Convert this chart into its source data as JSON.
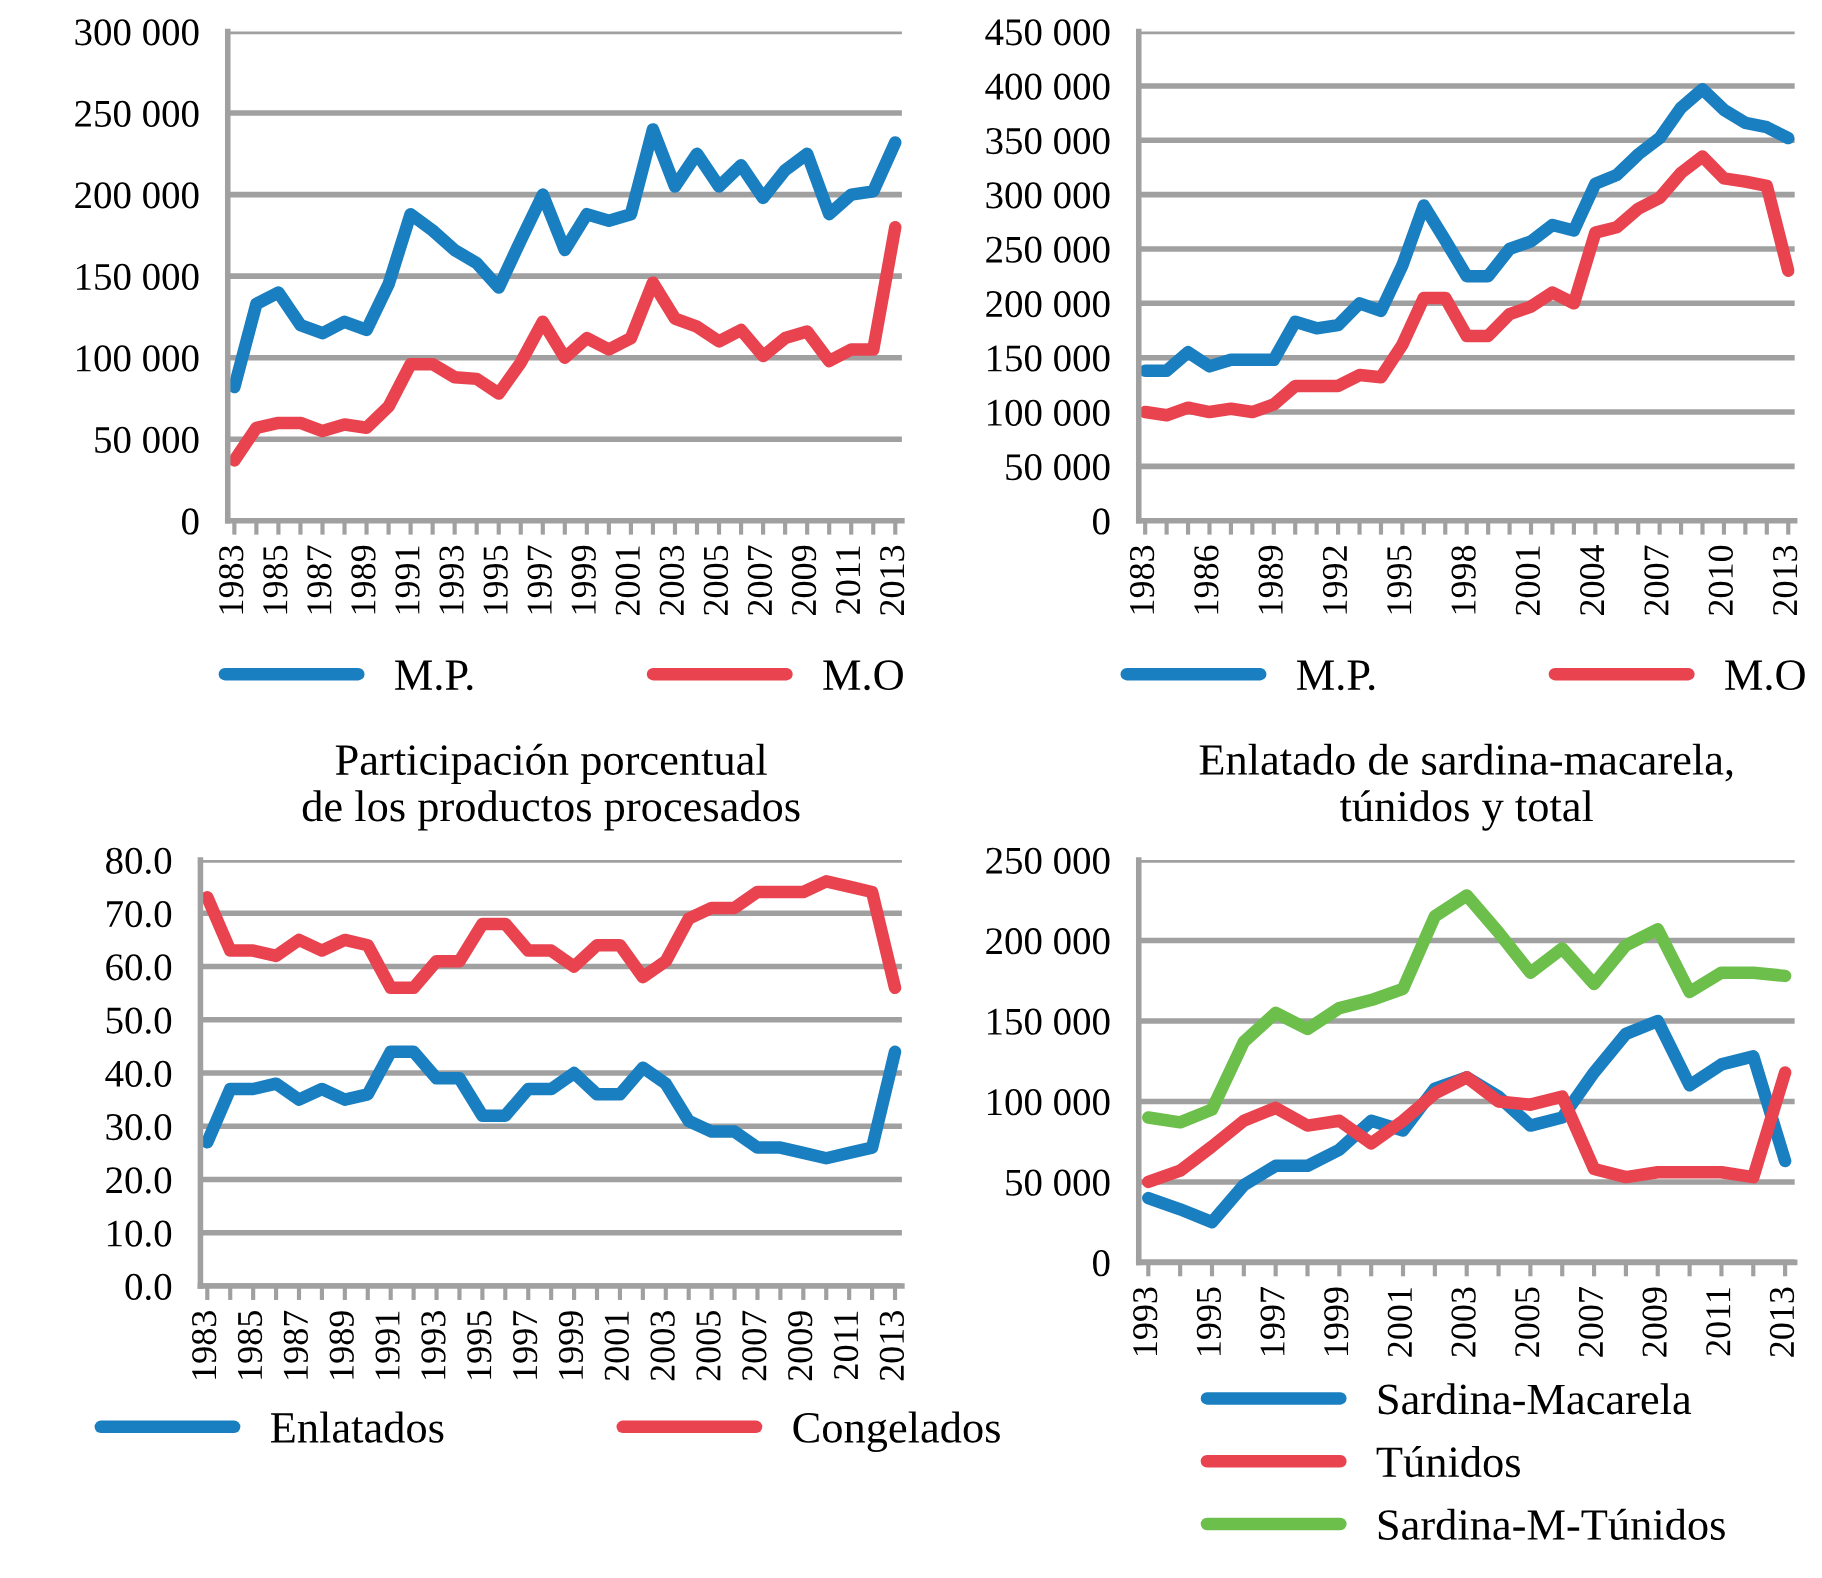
{
  "chart_data": [
    {
      "type": "line",
      "categories": [
        "1983",
        null,
        "1985",
        null,
        "1987",
        null,
        "1989",
        null,
        "1991",
        null,
        "1993",
        null,
        "1995",
        null,
        "1997",
        null,
        "1999",
        null,
        "2001",
        null,
        "2003",
        null,
        "2005",
        null,
        "2007",
        null,
        "2009",
        null,
        "2011",
        null,
        "2013"
      ],
      "series": [
        {
          "name": "M.P.",
          "color": "#1a7fc0",
          "values": [
            82000,
            133000,
            140000,
            120000,
            115000,
            122000,
            117000,
            145000,
            188000,
            178000,
            166000,
            158000,
            143000,
            172000,
            200000,
            166000,
            188000,
            184000,
            188000,
            240000,
            205000,
            225000,
            205000,
            218000,
            198000,
            215000,
            225000,
            188000,
            200000,
            202000,
            232000
          ]
        },
        {
          "name": "M.O",
          "color": "#e8434f",
          "values": [
            37000,
            57000,
            60000,
            60000,
            55000,
            59000,
            57000,
            70000,
            96000,
            96000,
            88000,
            87000,
            78000,
            97000,
            122000,
            100000,
            112000,
            105000,
            112000,
            146000,
            124000,
            119000,
            110000,
            117000,
            101000,
            112000,
            116000,
            98000,
            105000,
            105000,
            180000
          ]
        }
      ],
      "ylim": [
        0,
        300000
      ],
      "yticks": [
        0,
        {
          "value": 50000,
          "label": "50 000"
        },
        {
          "value": 100000,
          "label": "100 000"
        },
        {
          "value": 150000,
          "label": "150 000"
        },
        {
          "value": 200000,
          "label": "200 000"
        },
        {
          "value": 250000,
          "label": "250 000"
        },
        {
          "value": 300000,
          "label": "300 000"
        }
      ],
      "grid": "y",
      "legend": "bottom",
      "marker": "none",
      "line_style": "solid"
    },
    {
      "type": "line",
      "categories": [
        "1983",
        null,
        null,
        "1986",
        null,
        null,
        "1989",
        null,
        null,
        "1992",
        null,
        null,
        "1995",
        null,
        null,
        "1998",
        null,
        null,
        "2001",
        null,
        null,
        "2004",
        null,
        null,
        "2007",
        null,
        null,
        "2010",
        null,
        null,
        "2013"
      ],
      "series": [
        {
          "name": "M.P.",
          "color": "#1a7fc0",
          "values": [
            138000,
            138000,
            155000,
            142000,
            148000,
            148000,
            148000,
            183000,
            177000,
            180000,
            200000,
            193000,
            235000,
            290000,
            258000,
            225000,
            225000,
            250000,
            257000,
            272000,
            267000,
            310000,
            318000,
            337000,
            352000,
            380000,
            397000,
            378000,
            366000,
            362000,
            352000
          ]
        },
        {
          "name": "M.O",
          "color": "#e8434f",
          "values": [
            100000,
            97000,
            104000,
            100000,
            103000,
            100000,
            107000,
            124000,
            124000,
            124000,
            134000,
            132000,
            162000,
            205000,
            205000,
            170000,
            170000,
            190000,
            197000,
            210000,
            200000,
            265000,
            270000,
            287000,
            297000,
            320000,
            335000,
            315000,
            312000,
            308000,
            230000
          ]
        }
      ],
      "ylim": [
        0,
        450000
      ],
      "yticks": [
        0,
        {
          "value": 50000,
          "label": "50 000"
        },
        {
          "value": 100000,
          "label": "100 000"
        },
        {
          "value": 150000,
          "label": "150 000"
        },
        {
          "value": 200000,
          "label": "200 000"
        },
        {
          "value": 250000,
          "label": "250 000"
        },
        {
          "value": 300000,
          "label": "300 000"
        },
        {
          "value": 350000,
          "label": "350 000"
        },
        {
          "value": 400000,
          "label": "400 000"
        },
        {
          "value": 450000,
          "label": "450 000"
        }
      ],
      "grid": "y",
      "legend": "bottom",
      "marker": "none",
      "line_style": "solid"
    },
    {
      "type": "line",
      "title": "Participación porcentual\nde los productos procesados",
      "categories": [
        "1983",
        null,
        "1985",
        null,
        "1987",
        null,
        "1989",
        null,
        "1991",
        null,
        "1993",
        null,
        "1995",
        null,
        "1997",
        null,
        "1999",
        null,
        "2001",
        null,
        "2003",
        null,
        "2005",
        null,
        "2007",
        null,
        "2009",
        null,
        "2011",
        null,
        "2013"
      ],
      "series": [
        {
          "name": "Enlatados",
          "color": "#1a7fc0",
          "values": [
            27,
            37,
            37,
            38,
            35,
            37,
            35,
            36,
            44,
            44,
            39,
            39,
            32,
            32,
            37,
            37,
            40,
            36,
            36,
            41,
            38,
            31,
            29,
            29,
            26,
            26,
            25,
            24,
            25,
            26,
            44
          ]
        },
        {
          "name": "Congelados",
          "color": "#e8434f",
          "values": [
            73,
            63,
            63,
            62,
            65,
            63,
            65,
            64,
            56,
            56,
            61,
            61,
            68,
            68,
            63,
            63,
            60,
            64,
            64,
            58,
            61,
            69,
            71,
            71,
            74,
            74,
            74,
            76,
            75,
            74,
            56
          ]
        }
      ],
      "ylim": [
        0,
        80
      ],
      "yticks": [
        {
          "value": 0,
          "label": "0.0"
        },
        {
          "value": 10,
          "label": "10.0"
        },
        {
          "value": 20,
          "label": "20.0"
        },
        {
          "value": 30,
          "label": "30.0"
        },
        {
          "value": 40,
          "label": "40.0"
        },
        {
          "value": 50,
          "label": "50.0"
        },
        {
          "value": 60,
          "label": "60.0"
        },
        {
          "value": 70,
          "label": "70.0"
        },
        {
          "value": 80,
          "label": "80.0"
        }
      ],
      "grid": "y",
      "legend": "bottom",
      "marker": "none",
      "line_style": "solid"
    },
    {
      "type": "line",
      "title": "Enlatado de sardina-macarela,\ntúnidos y total",
      "categories": [
        "1993",
        null,
        "1995",
        null,
        "1997",
        null,
        "1999",
        null,
        "2001",
        null,
        "2003",
        null,
        "2005",
        null,
        "2007",
        null,
        "2009",
        null,
        "2011",
        null,
        "2013"
      ],
      "series": [
        {
          "name": "Sardina-Macarela",
          "color": "#1a7fc0",
          "values": [
            40000,
            33000,
            25000,
            48000,
            60000,
            60000,
            70000,
            88000,
            82000,
            108000,
            115000,
            103000,
            85000,
            90000,
            118000,
            142000,
            150000,
            110000,
            123000,
            128000,
            63000
          ]
        },
        {
          "name": "Túnidos",
          "color": "#e8434f",
          "values": [
            50000,
            57000,
            72000,
            88000,
            96000,
            85000,
            88000,
            74000,
            88000,
            105000,
            115000,
            100000,
            98000,
            103000,
            58000,
            53000,
            56000,
            56000,
            56000,
            53000,
            118000
          ]
        },
        {
          "name": "Sardina-M-Túnidos",
          "color": "#6cbf4a",
          "values": [
            90000,
            87000,
            95000,
            137000,
            155000,
            145000,
            158000,
            163000,
            170000,
            215000,
            228000,
            205000,
            180000,
            195000,
            173000,
            197000,
            207000,
            168000,
            180000,
            180000,
            178000
          ]
        }
      ],
      "ylim": [
        0,
        250000
      ],
      "yticks": [
        0,
        {
          "value": 50000,
          "label": "50 000"
        },
        {
          "value": 100000,
          "label": "100 000"
        },
        {
          "value": 150000,
          "label": "150 000"
        },
        {
          "value": 200000,
          "label": "200 000"
        },
        {
          "value": 250000,
          "label": "250 000"
        }
      ],
      "grid": "y",
      "legend": "bottom",
      "marker": "none",
      "line_style": "solid"
    }
  ]
}
